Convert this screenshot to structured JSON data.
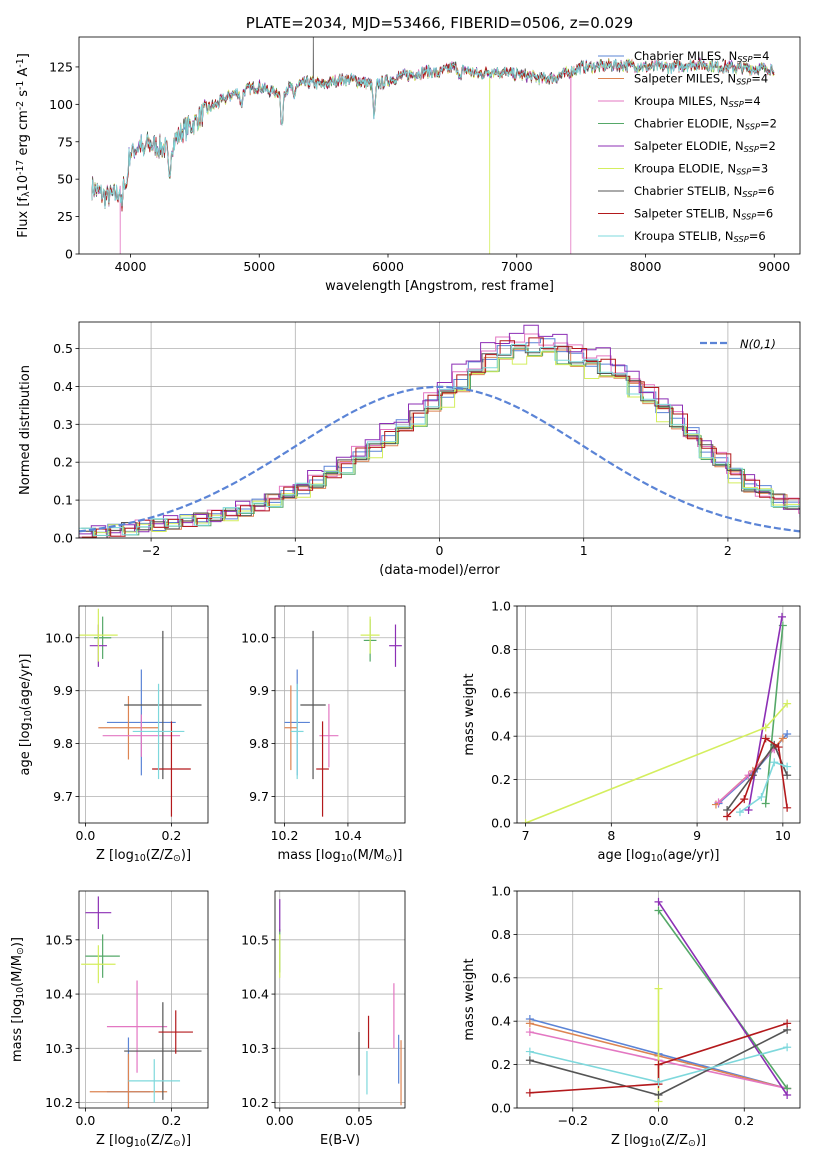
{
  "colors": [
    "#5b84d6",
    "#dd8452",
    "#e377c2",
    "#55a868",
    "#8c2fb5",
    "#d4ee5e",
    "#555555",
    "#b3191c",
    "#7ed8dc"
  ],
  "chart_data": [
    {
      "id": "spectrum",
      "type": "line",
      "title": "PLATE=2034, MJD=53466, FIBERID=0506, z=0.029",
      "xlabel": "wavelength [Angstrom, rest frame]",
      "ylabel": "Flux [f$_\\lambda$10$^{-17}$ erg cm$^{-2}$ s$^{-1}$ A$^{-1}$]",
      "xlim": [
        3600,
        9200
      ],
      "ylim": [
        0,
        145
      ],
      "xticks": [
        4000,
        5000,
        6000,
        7000,
        8000,
        9000
      ],
      "yticks": [
        0,
        25,
        50,
        75,
        100,
        125
      ],
      "legend_placement": "upper right",
      "series": [
        {
          "name": "Chabrier MILES, N_SSP=4"
        },
        {
          "name": "Salpeter MILES, N_SSP=4"
        },
        {
          "name": "Kroupa MILES, N_SSP=4"
        },
        {
          "name": "Chabrier ELODIE, N_SSP=2"
        },
        {
          "name": "Salpeter ELODIE, N_SSP=2"
        },
        {
          "name": "Kroupa ELODIE, N_SSP=3"
        },
        {
          "name": "Chabrier STELIB, N_SSP=6"
        },
        {
          "name": "Salpeter STELIB, N_SSP=6"
        },
        {
          "name": "Kroupa STELIB, N_SSP=6"
        }
      ],
      "continuum": {
        "x": [
          3700,
          3800,
          3900,
          4000,
          4100,
          4200,
          4300,
          4400,
          4500,
          4600,
          4700,
          4800,
          4900,
          5000,
          5100,
          5200,
          5300,
          5400,
          5500,
          5600,
          5700,
          5800,
          5900,
          6000,
          6100,
          6200,
          6300,
          6400,
          6500,
          6600,
          6700,
          6800,
          6900,
          7000,
          7100,
          7200,
          7300,
          7400,
          7500,
          7600,
          7700,
          7800,
          7900,
          8000,
          8200,
          8400,
          8600,
          8800,
          9000
        ],
        "y": [
          45,
          38,
          40,
          68,
          75,
          72,
          70,
          82,
          88,
          97,
          102,
          107,
          110,
          112,
          108,
          110,
          113,
          115,
          113,
          116,
          117,
          115,
          113,
          116,
          119,
          120,
          122,
          121,
          125,
          123,
          120,
          122,
          121,
          120,
          119,
          117,
          118,
          121,
          125,
          125,
          126,
          126,
          126,
          125,
          125,
          127,
          125,
          124,
          124
        ]
      },
      "absorption_features": [
        {
          "x": 3934,
          "depth": 20
        },
        {
          "x": 3968,
          "depth": 15
        },
        {
          "x": 4102,
          "depth": 10
        },
        {
          "x": 4300,
          "depth": 20
        },
        {
          "x": 4861,
          "depth": 10
        },
        {
          "x": 5175,
          "depth": 25
        },
        {
          "x": 5270,
          "depth": 8
        },
        {
          "x": 5893,
          "depth": 22
        },
        {
          "x": 6563,
          "depth": 8
        }
      ],
      "spikes": [
        {
          "x": 3920,
          "series": "Kroupa MILES, N_SSP=4",
          "to": 0
        },
        {
          "x": 6790,
          "series": "Kroupa ELODIE, N_SSP=3",
          "to": 0
        },
        {
          "x": 7420,
          "series": "Kroupa MILES, N_SSP=4",
          "to": 0
        },
        {
          "x": 5420,
          "series": "Chabrier STELIB, N_SSP=6",
          "to": 145
        }
      ]
    },
    {
      "id": "residuals",
      "type": "step",
      "xlabel": "(data-model)/error",
      "ylabel": "Normed distribution",
      "xlim": [
        -2.5,
        2.5
      ],
      "ylim": [
        0,
        0.57
      ],
      "xticks": [
        -2,
        -1,
        0,
        1,
        2
      ],
      "yticks": [
        0.0,
        0.1,
        0.2,
        0.3,
        0.4,
        0.5
      ],
      "legend": "N(0,1)",
      "legend_placement": "upper right",
      "bin_width": 0.1,
      "bins_start": -2.5,
      "base_histogram": [
        0.01,
        0.015,
        0.02,
        0.025,
        0.03,
        0.035,
        0.04,
        0.045,
        0.05,
        0.055,
        0.065,
        0.075,
        0.085,
        0.1,
        0.115,
        0.13,
        0.15,
        0.17,
        0.19,
        0.215,
        0.24,
        0.265,
        0.29,
        0.32,
        0.35,
        0.38,
        0.41,
        0.44,
        0.47,
        0.49,
        0.5,
        0.505,
        0.5,
        0.49,
        0.47,
        0.46,
        0.45,
        0.43,
        0.4,
        0.37,
        0.34,
        0.31,
        0.27,
        0.23,
        0.2,
        0.17,
        0.14,
        0.12,
        0.1,
        0.085,
        0.07,
        0.06,
        0.055,
        0.05,
        0.045,
        0.04,
        0.035,
        0.03,
        0.028,
        0.025,
        0.022,
        0.02,
        0.018,
        0.016,
        0.014,
        0.012,
        0.01,
        0.009,
        0.008,
        0.007
      ],
      "series_shift": [
        0.0,
        0.02,
        -0.02,
        0.03,
        -0.03,
        0.01,
        -0.01,
        0.04,
        0.0
      ],
      "series_scale": [
        1.02,
        0.98,
        1.05,
        0.97,
        1.08,
        0.95,
        1.0,
        1.03,
        0.99
      ]
    },
    {
      "id": "age_vs_Z",
      "type": "errorbar",
      "xlabel": "Z [log$_{10}$(Z/Z$_\\odot$)]",
      "ylabel": "age  [log$_{10}$(age/yr)]",
      "xlim": [
        -0.015,
        0.285
      ],
      "ylim": [
        9.65,
        10.06
      ],
      "xticks": [
        0.0,
        0.2
      ],
      "yticks": [
        9.7,
        9.8,
        9.9,
        10.0
      ],
      "points": [
        {
          "x": 0.13,
          "y": 9.84,
          "xerr": 0.08,
          "yerr": 0.1,
          "c": 0
        },
        {
          "x": 0.1,
          "y": 9.83,
          "xerr": 0.07,
          "yerr": 0.06,
          "c": 1
        },
        {
          "x": 0.13,
          "y": 9.815,
          "xerr": 0.09,
          "yerr": 0.04,
          "c": 2
        },
        {
          "x": 0.04,
          "y": 10.0,
          "xerr": 0.02,
          "yerr": 0.04,
          "c": 3
        },
        {
          "x": 0.03,
          "y": 9.985,
          "xerr": 0.02,
          "yerr": 0.04,
          "c": 4
        },
        {
          "x": 0.03,
          "y": 10.005,
          "xerr": 0.045,
          "yerr": 0.05,
          "c": 5
        },
        {
          "x": 0.18,
          "y": 9.873,
          "xerr": 0.09,
          "yerr": 0.14,
          "c": 6
        },
        {
          "x": 0.2,
          "y": 9.752,
          "xerr": 0.045,
          "yerr": 0.09,
          "c": 7
        },
        {
          "x": 0.17,
          "y": 9.823,
          "xerr": 0.06,
          "yerr": 0.09,
          "c": 8
        }
      ]
    },
    {
      "id": "age_vs_mass",
      "type": "errorbar",
      "xlabel": "mass [log$_{10}$(M/M$_\\odot$)]",
      "ylabel": "",
      "xlim": [
        10.17,
        10.58
      ],
      "ylim": [
        9.65,
        10.06
      ],
      "xticks": [
        10.2,
        10.4
      ],
      "yticks": [
        9.7,
        9.8,
        9.9,
        10.0
      ],
      "points": [
        {
          "x": 10.24,
          "y": 9.84,
          "xerr": 0.04,
          "yerr": 0.1,
          "c": 0
        },
        {
          "x": 10.22,
          "y": 9.83,
          "xerr": 0.02,
          "yerr": 0.08,
          "c": 1
        },
        {
          "x": 10.34,
          "y": 9.815,
          "xerr": 0.03,
          "yerr": 0.06,
          "c": 2
        },
        {
          "x": 10.47,
          "y": 9.995,
          "xerr": 0.02,
          "yerr": 0.04,
          "c": 3
        },
        {
          "x": 10.55,
          "y": 9.985,
          "xerr": 0.02,
          "yerr": 0.04,
          "c": 4
        },
        {
          "x": 10.47,
          "y": 10.005,
          "xerr": 0.03,
          "yerr": 0.035,
          "c": 5
        },
        {
          "x": 10.29,
          "y": 9.873,
          "xerr": 0.04,
          "yerr": 0.14,
          "c": 6
        },
        {
          "x": 10.32,
          "y": 9.752,
          "xerr": 0.02,
          "yerr": 0.09,
          "c": 7
        },
        {
          "x": 10.24,
          "y": 9.823,
          "xerr": 0.02,
          "yerr": 0.09,
          "c": 8
        }
      ]
    },
    {
      "id": "mass_weight_vs_age",
      "type": "line",
      "xlabel": "age  [log$_{10}$(age/yr)]",
      "ylabel": "mass weight",
      "xlim": [
        6.9,
        10.2
      ],
      "ylim": [
        0,
        1.0
      ],
      "xticks": [
        7,
        8,
        9,
        10
      ],
      "yticks": [
        0.0,
        0.2,
        0.4,
        0.6,
        0.8,
        1.0
      ],
      "series": [
        {
          "c": 0,
          "x": [
            9.25,
            9.7,
            10.05
          ],
          "y": [
            0.09,
            0.25,
            0.41
          ]
        },
        {
          "c": 1,
          "x": [
            9.22,
            9.65,
            10.0
          ],
          "y": [
            0.085,
            0.24,
            0.39
          ]
        },
        {
          "c": 2,
          "x": [
            9.25,
            9.6,
            9.9
          ],
          "y": [
            0.095,
            0.22,
            0.34
          ]
        },
        {
          "c": 3,
          "x": [
            9.8,
            10.0
          ],
          "y": [
            0.09,
            0.91
          ]
        },
        {
          "c": 4,
          "x": [
            9.6,
            9.99
          ],
          "y": [
            0.06,
            0.95
          ]
        },
        {
          "c": 5,
          "x": [
            7.0,
            9.8,
            10.05
          ],
          "y": [
            0.0,
            0.44,
            0.55
          ]
        },
        {
          "c": 6,
          "x": [
            9.35,
            9.65,
            9.9,
            10.05
          ],
          "y": [
            0.06,
            0.22,
            0.36,
            0.22
          ]
        },
        {
          "c": 7,
          "x": [
            9.35,
            9.55,
            9.8,
            9.95,
            10.05
          ],
          "y": [
            0.03,
            0.11,
            0.39,
            0.35,
            0.07
          ]
        },
        {
          "c": 8,
          "x": [
            9.5,
            9.75,
            9.9,
            10.05
          ],
          "y": [
            0.05,
            0.12,
            0.28,
            0.26
          ]
        }
      ]
    },
    {
      "id": "mass_vs_Z",
      "type": "errorbar",
      "xlabel": "Z [log$_{10}$(Z/Z$_\\odot$)]",
      "ylabel": "mass [log$_{10}$(M/M$_\\odot$)]",
      "xlim": [
        -0.015,
        0.285
      ],
      "ylim": [
        10.19,
        10.59
      ],
      "xticks": [
        0.0,
        0.2
      ],
      "yticks": [
        10.2,
        10.3,
        10.4,
        10.5
      ],
      "points": [
        {
          "x": 0.1,
          "y": 10.22,
          "xerr": 0.05,
          "yerr": 0.1,
          "c": 0
        },
        {
          "x": 0.1,
          "y": 10.22,
          "xerr": 0.09,
          "yerr": 0.07,
          "c": 1
        },
        {
          "x": 0.12,
          "y": 10.34,
          "xerr": 0.07,
          "yerr": 0.085,
          "c": 2
        },
        {
          "x": 0.04,
          "y": 10.47,
          "xerr": 0.04,
          "yerr": 0.04,
          "c": 3
        },
        {
          "x": 0.03,
          "y": 10.55,
          "xerr": 0.03,
          "yerr": 0.03,
          "c": 4
        },
        {
          "x": 0.03,
          "y": 10.455,
          "xerr": 0.04,
          "yerr": 0.035,
          "c": 5
        },
        {
          "x": 0.18,
          "y": 10.295,
          "xerr": 0.09,
          "yerr": 0.09,
          "c": 6
        },
        {
          "x": 0.21,
          "y": 10.33,
          "xerr": 0.04,
          "yerr": 0.04,
          "c": 7
        },
        {
          "x": 0.16,
          "y": 10.24,
          "xerr": 0.06,
          "yerr": 0.04,
          "c": 8
        }
      ]
    },
    {
      "id": "mass_vs_EBV",
      "type": "errorbar",
      "xlabel": "E(B-V)",
      "ylabel": "",
      "xlim": [
        -0.003,
        0.079
      ],
      "ylim": [
        10.19,
        10.59
      ],
      "xticks": [
        0.0,
        0.05
      ],
      "yticks": [
        10.2,
        10.3,
        10.4,
        10.5
      ],
      "points": [
        {
          "x": 0.0,
          "y": 10.48,
          "xerr": 0.0,
          "yerr": 0.04,
          "c": 3
        },
        {
          "x": 0.0,
          "y": 10.545,
          "xerr": 0.0,
          "yerr": 0.03,
          "c": 4
        },
        {
          "x": 0.0,
          "y": 10.47,
          "xerr": 0.0,
          "yerr": 0.04,
          "c": 5
        },
        {
          "x": 0.05,
          "y": 10.29,
          "xerr": 0.0,
          "yerr": 0.04,
          "c": 6
        },
        {
          "x": 0.056,
          "y": 10.33,
          "xerr": 0.0,
          "yerr": 0.03,
          "c": 7
        },
        {
          "x": 0.055,
          "y": 10.255,
          "xerr": 0.0,
          "yerr": 0.04,
          "c": 8
        },
        {
          "x": 0.072,
          "y": 10.36,
          "xerr": 0.0,
          "yerr": 0.06,
          "c": 2
        },
        {
          "x": 0.075,
          "y": 10.28,
          "xerr": 0.0,
          "yerr": 0.045,
          "c": 0
        },
        {
          "x": 0.0765,
          "y": 10.255,
          "xerr": 0.0,
          "yerr": 0.06,
          "c": 1
        }
      ]
    },
    {
      "id": "mass_weight_vs_Z",
      "type": "line",
      "xlabel": "Z [log$_{10}$(Z/Z$_\\odot$)]",
      "ylabel": "mass weight",
      "xlim": [
        -0.33,
        0.33
      ],
      "ylim": [
        0,
        1.0
      ],
      "xticks": [
        -0.2,
        0.0,
        0.2
      ],
      "yticks": [
        0.0,
        0.2,
        0.4,
        0.6,
        0.8,
        1.0
      ],
      "series": [
        {
          "c": 0,
          "x": [
            -0.3,
            0.0,
            0.3
          ],
          "y": [
            0.41,
            0.25,
            0.09
          ]
        },
        {
          "c": 1,
          "x": [
            -0.3,
            0.0,
            0.3
          ],
          "y": [
            0.39,
            0.24,
            0.09
          ]
        },
        {
          "c": 2,
          "x": [
            -0.3,
            0.0,
            0.3
          ],
          "y": [
            0.35,
            0.22,
            0.09
          ]
        },
        {
          "c": 3,
          "x": [
            0.0,
            0.3
          ],
          "y": [
            0.91,
            0.09
          ]
        },
        {
          "c": 4,
          "x": [
            0.0,
            0.3
          ],
          "y": [
            0.95,
            0.06
          ]
        },
        {
          "c": 5,
          "x": [
            0.0,
            0.0
          ],
          "y": [
            0.03,
            0.55
          ]
        },
        {
          "c": 6,
          "x": [
            -0.3,
            0.0,
            0.3
          ],
          "y": [
            0.22,
            0.06,
            0.36
          ]
        },
        {
          "c": 7,
          "x": [
            -0.3,
            0.0,
            0.0,
            0.3
          ],
          "y": [
            0.07,
            0.11,
            0.2,
            0.39
          ]
        },
        {
          "c": 8,
          "x": [
            -0.3,
            0.0,
            0.3
          ],
          "y": [
            0.26,
            0.12,
            0.28
          ]
        }
      ]
    }
  ]
}
